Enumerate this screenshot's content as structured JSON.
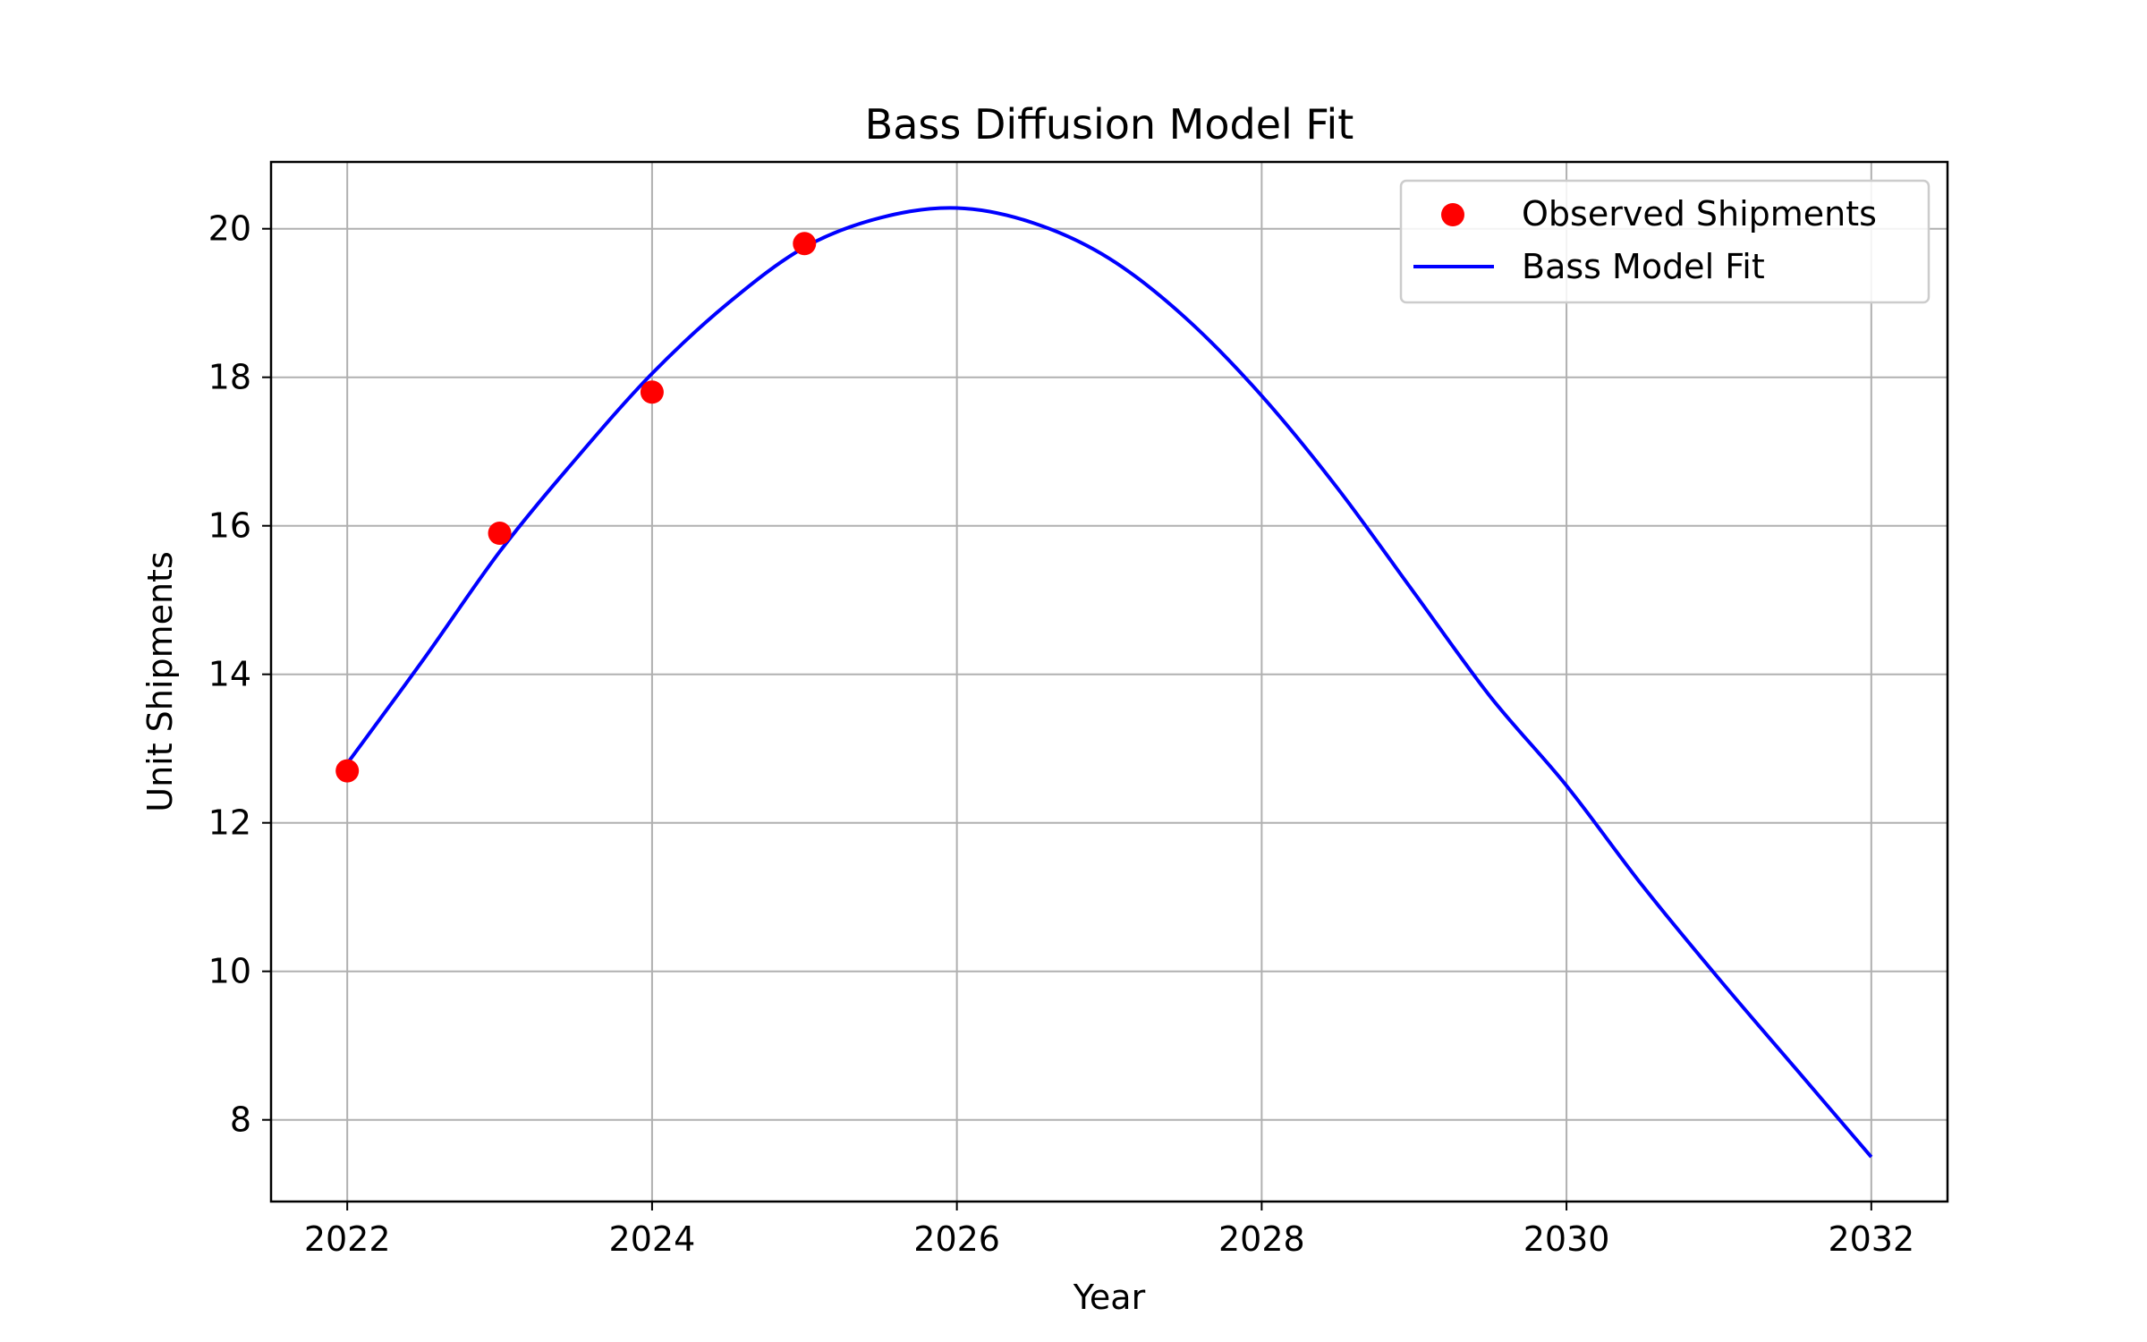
{
  "chart_data": {
    "type": "line",
    "title": "Bass Diffusion Model Fit",
    "xlabel": "Year",
    "ylabel": "Unit Shipments",
    "xlim": [
      2021.5,
      2032.5
    ],
    "ylim": [
      6.9,
      20.9
    ],
    "xticks": [
      2022,
      2024,
      2026,
      2028,
      2030,
      2032
    ],
    "yticks": [
      8,
      10,
      12,
      14,
      16,
      18,
      20
    ],
    "grid": true,
    "legend_position": "top-right",
    "series": [
      {
        "name": "Observed Shipments",
        "kind": "scatter",
        "color": "#ff0000",
        "x": [
          2022,
          2023,
          2024,
          2025
        ],
        "y": [
          12.7,
          15.9,
          17.8,
          19.8
        ]
      },
      {
        "name": "Bass Model Fit",
        "kind": "line",
        "color": "#0000ff",
        "x": [
          2022,
          2022.5,
          2023,
          2023.5,
          2024,
          2024.5,
          2025,
          2025.5,
          2026,
          2026.5,
          2027,
          2027.5,
          2028,
          2028.5,
          2029,
          2029.5,
          2030,
          2030.5,
          2031,
          2031.5,
          2032
        ],
        "y": [
          12.8,
          14.2,
          15.65,
          16.9,
          18.05,
          19.0,
          19.75,
          20.15,
          20.28,
          20.08,
          19.6,
          18.8,
          17.75,
          16.5,
          15.1,
          13.7,
          12.5,
          11.15,
          9.9,
          8.7,
          7.5
        ]
      }
    ]
  }
}
